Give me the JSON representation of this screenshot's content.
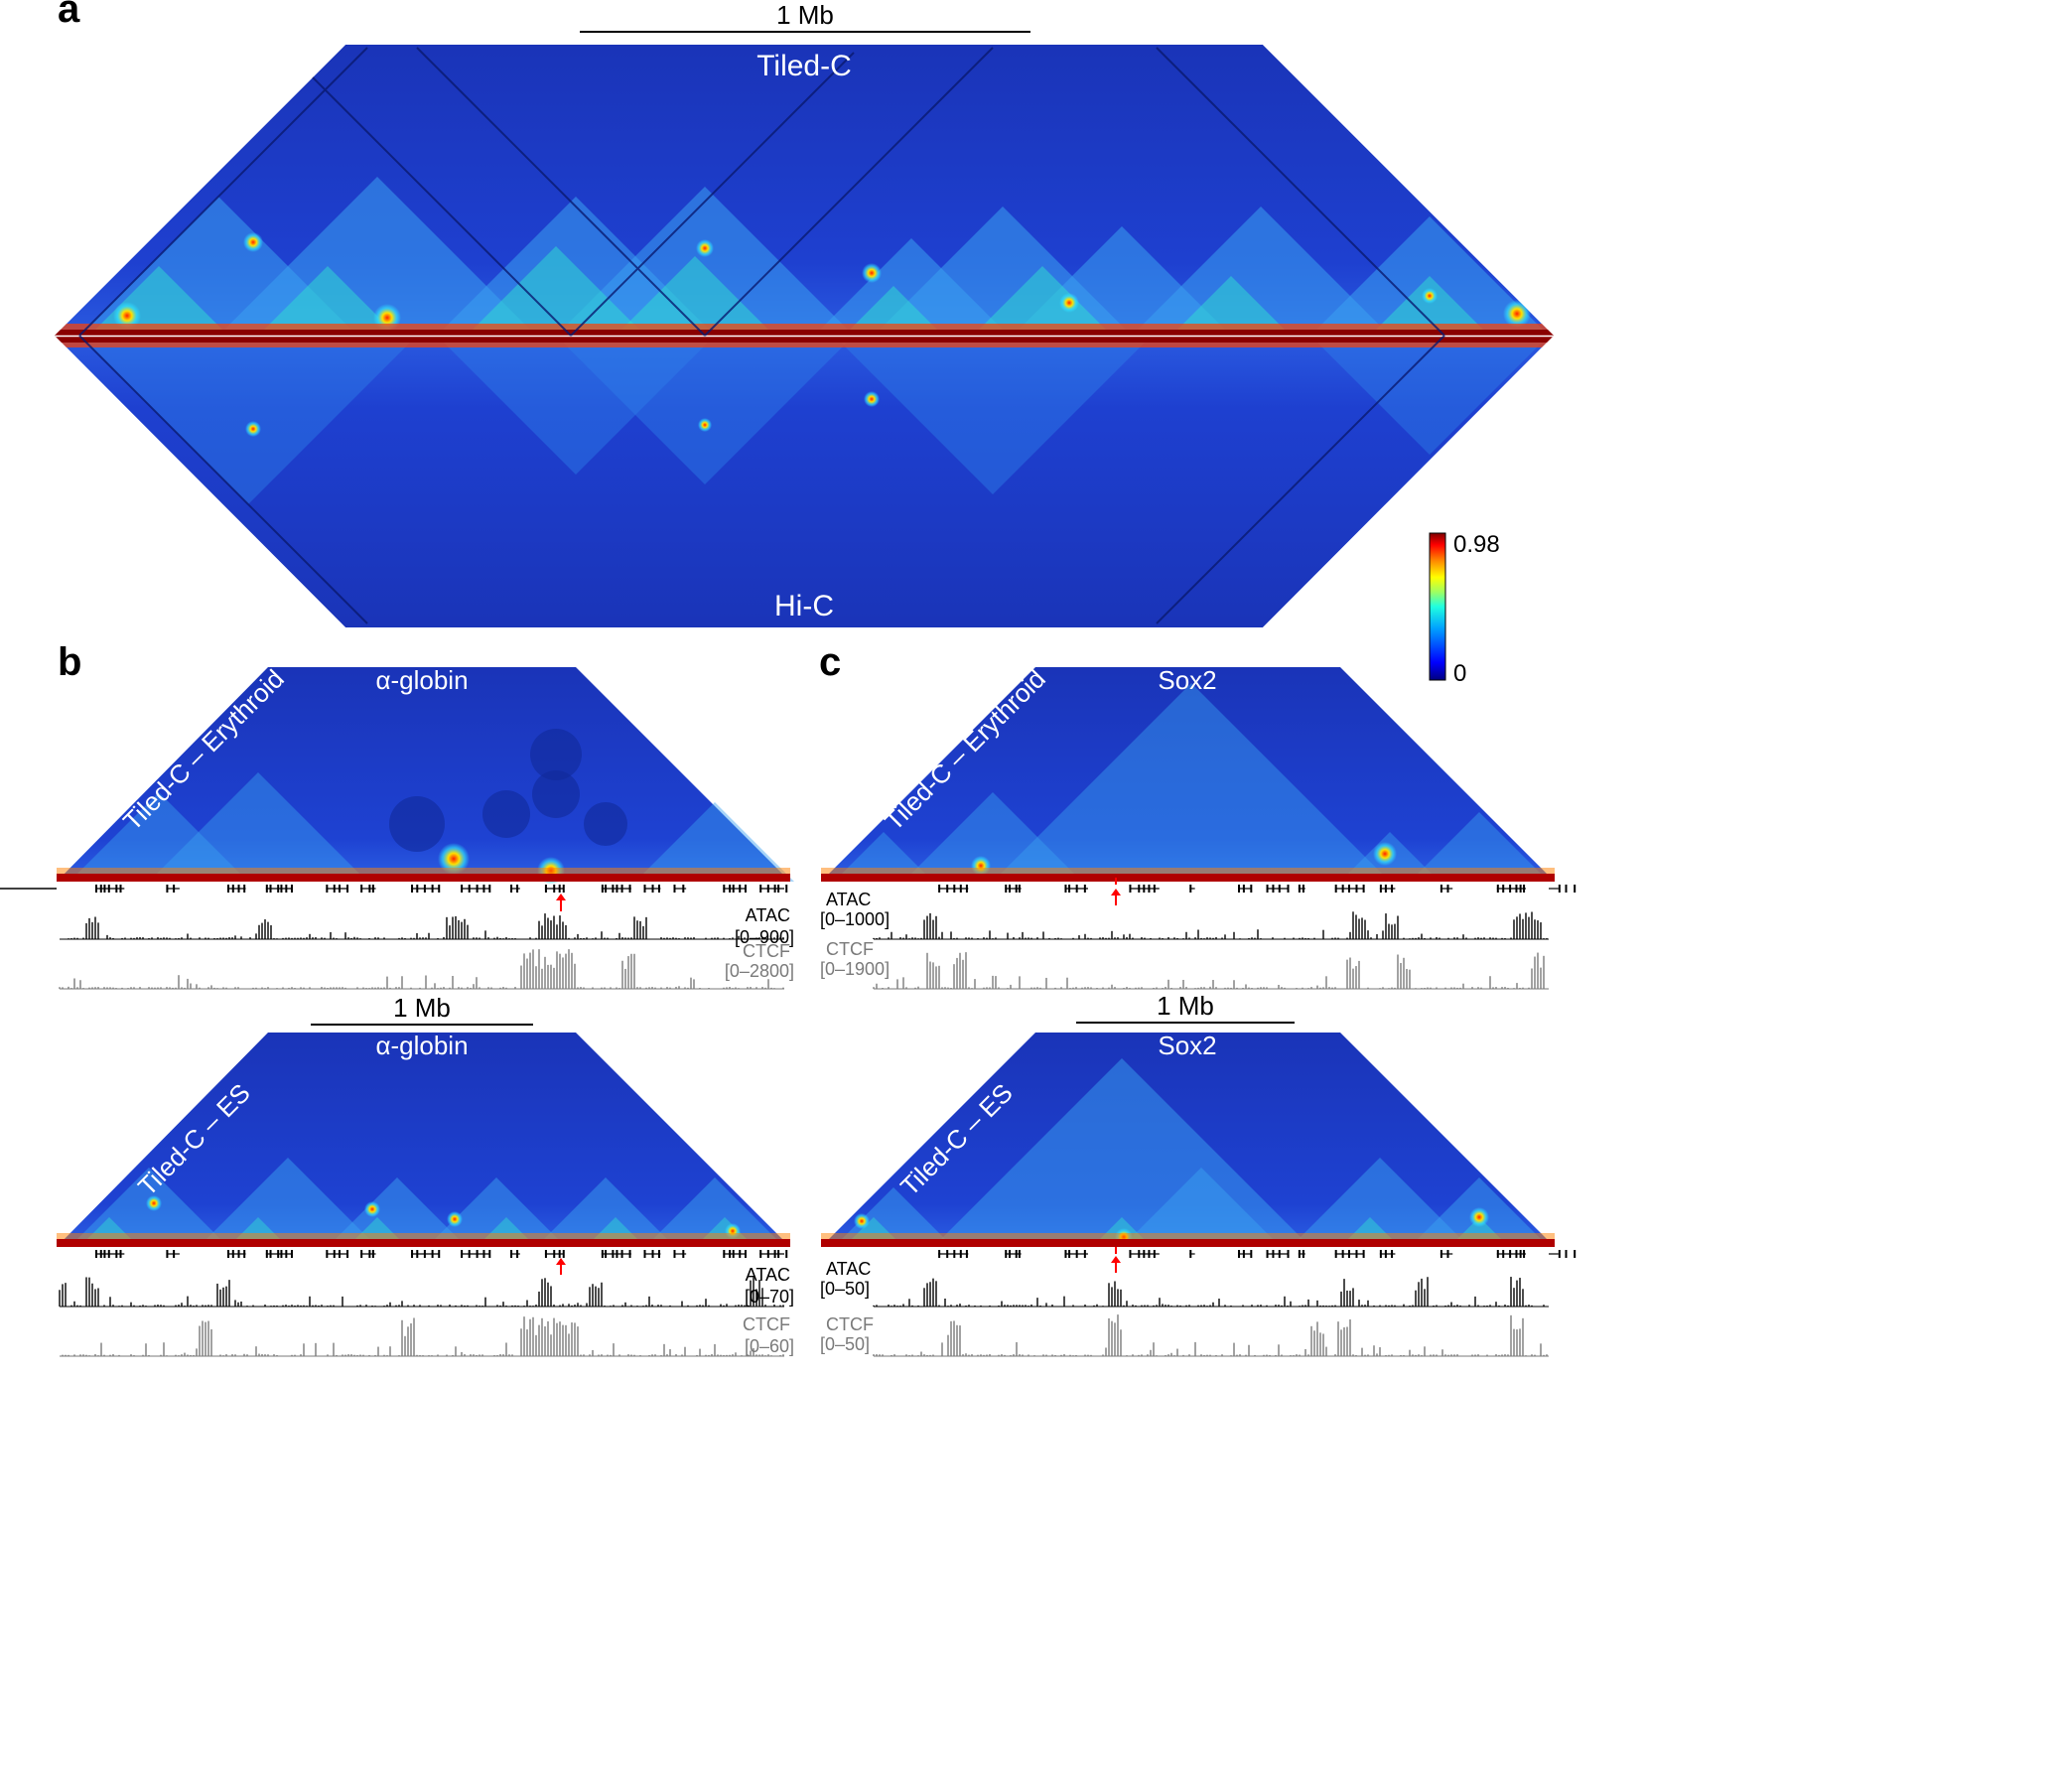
{
  "figure": {
    "panels": {
      "a": {
        "letter": "a",
        "scale_bar": "1 Mb",
        "top_title": "Tiled-C",
        "bottom_title": "Hi-C"
      },
      "b": {
        "letter": "b",
        "scale_bar": "1 Mb",
        "top": {
          "title": "α-globin",
          "side_label": "Tiled-C – Erythroid",
          "atac_name": "ATAC",
          "atac_range": "[0–900]",
          "ctcf_name": "CTCF",
          "ctcf_range": "[0–2800]"
        },
        "bottom": {
          "title": "α-globin",
          "side_label": "Tiled-C – ES",
          "atac_name": "ATAC",
          "atac_range": "[0–70]",
          "ctcf_name": "CTCF",
          "ctcf_range": "[0–60]"
        }
      },
      "c": {
        "letter": "c",
        "scale_bar": "1 Mb",
        "top": {
          "title": "Sox2",
          "side_label": "Tiled-C – Erythroid",
          "atac_name": "ATAC",
          "atac_range": "[0–1000]",
          "ctcf_name": "CTCF",
          "ctcf_range": "[0–1900]"
        },
        "bottom": {
          "title": "Sox2",
          "side_label": "Tiled-C – ES",
          "atac_name": "ATAC",
          "atac_range": "[0–50]",
          "ctcf_name": "CTCF",
          "ctcf_range": "[0–50]"
        }
      }
    },
    "colorbar": {
      "max_label": "0.98",
      "min_label": "0",
      "stops": [
        "#00007f",
        "#0000ff",
        "#00a0ff",
        "#20ffe0",
        "#a0ff60",
        "#ffff00",
        "#ff8000",
        "#ff0000",
        "#7f0000"
      ]
    },
    "colors": {
      "map_bg": "#1e3cc8",
      "map_bg_dark": "#14289a",
      "diagonal": "#8a0000",
      "hot": "#ff3000",
      "warm": "#ffe000",
      "cyan": "#30d0ff",
      "track_black": "#000000",
      "track_grey": "#7a7a7a",
      "viewpoint_arrow": "#ff0000"
    }
  }
}
